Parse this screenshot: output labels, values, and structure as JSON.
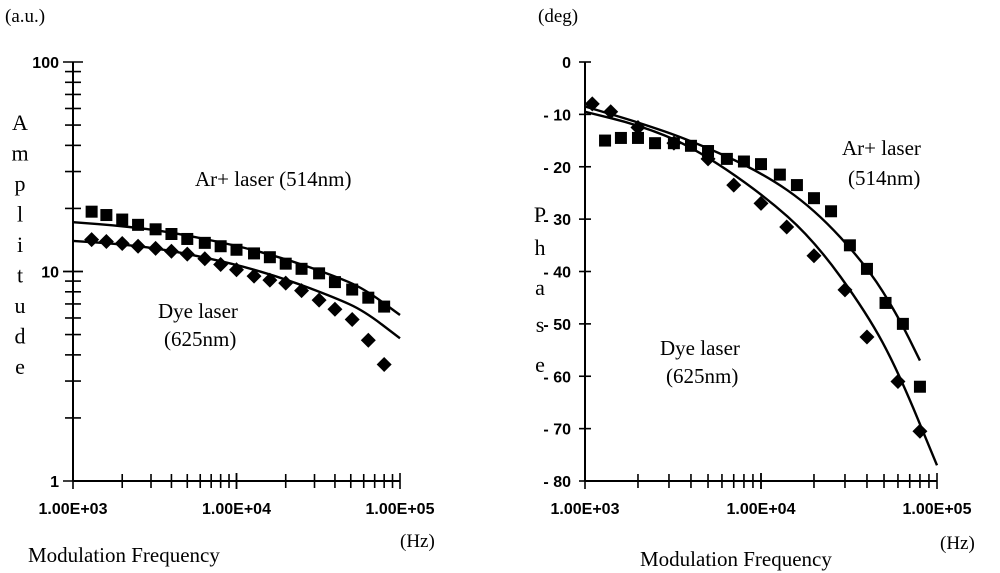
{
  "chart_data": [
    {
      "type": "scatter",
      "xscale": "log",
      "yscale": "log",
      "xlim": [
        1000,
        100000
      ],
      "ylim": [
        1,
        100
      ],
      "unit_label": "(a.u.)",
      "ylabel": "Amplitude",
      "xlabel": "Modulation Frequency",
      "xunit": "(Hz)",
      "xticklabels": [
        "1.00E+03",
        "1.00E+04",
        "1.00E+05"
      ],
      "yticklabels": [
        "1",
        "10",
        "100"
      ],
      "annotations": [
        {
          "id": "ar",
          "lines": [
            "Ar+ laser (514nm)"
          ]
        },
        {
          "id": "dye",
          "lines": [
            "Dye laser",
            "(625nm)"
          ]
        }
      ],
      "series": [
        {
          "name": "Ar+ laser (514nm)",
          "marker": "square",
          "x": [
            1300,
            1600,
            2000,
            2500,
            3200,
            4000,
            5000,
            6400,
            8000,
            10000,
            12800,
            16000,
            20000,
            25000,
            32000,
            40000,
            51000,
            64000,
            80000
          ],
          "y": [
            19.3,
            18.6,
            17.7,
            16.7,
            15.9,
            15.1,
            14.3,
            13.7,
            13.2,
            12.7,
            12.2,
            11.7,
            10.9,
            10.3,
            9.8,
            8.9,
            8.2,
            7.5,
            6.8
          ],
          "fit": {
            "x": [
              1000,
              2000,
              4000,
              10000,
              20000,
              40000,
              60000,
              100000
            ],
            "y": [
              17.2,
              16.5,
              15.4,
              13.3,
              11.5,
              9.5,
              8.3,
              6.2
            ]
          }
        },
        {
          "name": "Dye laser (625nm)",
          "marker": "diamond",
          "x": [
            1300,
            1600,
            2000,
            2500,
            3200,
            4000,
            5000,
            6400,
            8000,
            10000,
            12800,
            16000,
            20000,
            25000,
            32000,
            40000,
            51000,
            64000,
            80000
          ],
          "y": [
            14.2,
            13.9,
            13.6,
            13.2,
            12.9,
            12.5,
            12.1,
            11.5,
            10.8,
            10.2,
            9.5,
            9.1,
            8.8,
            8.1,
            7.3,
            6.6,
            5.9,
            4.7,
            3.6
          ],
          "fit": {
            "x": [
              1000,
              2000,
              4000,
              10000,
              20000,
              40000,
              60000,
              100000
            ],
            "y": [
              14.0,
              13.5,
              12.6,
              10.8,
              9.2,
              7.5,
              6.5,
              4.8
            ]
          }
        }
      ]
    },
    {
      "type": "scatter",
      "xscale": "log",
      "yscale": "linear",
      "xlim": [
        1000,
        100000
      ],
      "ylim": [
        -80,
        0
      ],
      "unit_label": "(deg)",
      "ylabel": "Phase",
      "xlabel": "Modulation Frequency",
      "xunit": "(Hz)",
      "xticklabels": [
        "1.00E+03",
        "1.00E+04",
        "1.00E+05"
      ],
      "yticks": [
        0,
        -10,
        -20,
        -30,
        -40,
        -50,
        -60,
        -70,
        -80
      ],
      "yticklabels": [
        "0",
        "- 10",
        "- 20",
        "- 30",
        "- 40",
        "- 50",
        "- 60",
        "- 70",
        "- 80"
      ],
      "annotations": [
        {
          "id": "ar",
          "lines": [
            "Ar+ laser",
            "(514nm)"
          ]
        },
        {
          "id": "dye",
          "lines": [
            "Dye laser",
            "(625nm)"
          ]
        }
      ],
      "series": [
        {
          "name": "Ar+ laser (514nm)",
          "marker": "square",
          "x": [
            1300,
            1600,
            2000,
            2500,
            3200,
            4000,
            5000,
            6400,
            8000,
            10000,
            12800,
            16000,
            20000,
            25000,
            32000,
            40000,
            51000,
            64000,
            80000
          ],
          "y": [
            -15,
            -14.5,
            -14.5,
            -15.5,
            -15.5,
            -16,
            -17,
            -18.5,
            -19,
            -19.5,
            -21.5,
            -23.5,
            -26,
            -28.5,
            -35,
            -39.5,
            -46,
            -50,
            -62
          ],
          "fit": {
            "x": [
              1000,
              2000,
              4000,
              10000,
              20000,
              40000,
              60000,
              80000
            ],
            "y": [
              -8.5,
              -11.5,
              -15,
              -21,
              -28,
              -39,
              -48.5,
              -57
            ]
          }
        },
        {
          "name": "Dye laser (625nm)",
          "marker": "diamond",
          "x": [
            1100,
            1400,
            2000,
            3200,
            5000,
            7000,
            10000,
            14000,
            20000,
            30000,
            40000,
            60000,
            80000
          ],
          "y": [
            -8,
            -9.5,
            -12.5,
            -15.5,
            -18.5,
            -23.5,
            -27,
            -31.5,
            -37,
            -43.5,
            -52.5,
            -61,
            -70.5
          ],
          "fit": {
            "x": [
              1000,
              2000,
              4000,
              10000,
              20000,
              40000,
              60000,
              100000
            ],
            "y": [
              -9.5,
              -12,
              -16,
              -25,
              -34,
              -48,
              -59,
              -77
            ]
          }
        }
      ]
    }
  ]
}
